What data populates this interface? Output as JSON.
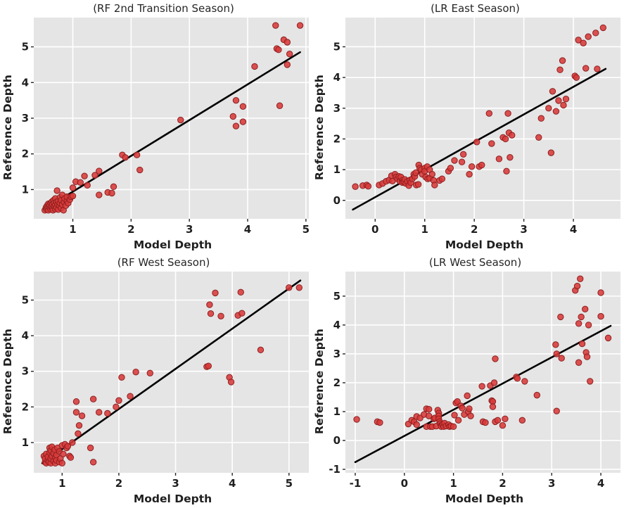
{
  "colors": {
    "plot_bg": "#e5e5e5",
    "grid": "#ffffff",
    "point_fill": "#d83a3a",
    "point_edge": "#8e1f1f",
    "fit_line": "#000000",
    "tick_mark": "#262626",
    "text": "#1f1f1f"
  },
  "chart_data": [
    {
      "type": "scatter",
      "title": "(RF 2nd Transition Season)",
      "xlabel": "Model Depth",
      "ylabel": "Reference Depth",
      "xlim": [
        0.33,
        5.05
      ],
      "ylim": [
        0.18,
        5.82
      ],
      "xticks": [
        1,
        2,
        3,
        4,
        5
      ],
      "yticks": [
        1,
        2,
        3,
        4,
        5
      ],
      "grid": true,
      "legend": "none",
      "fit_line": {
        "x1": 0.5,
        "y1": 0.44,
        "x2": 4.9,
        "y2": 4.85
      },
      "points": [
        [
          0.52,
          0.42
        ],
        [
          0.54,
          0.5
        ],
        [
          0.55,
          0.45
        ],
        [
          0.56,
          0.55
        ],
        [
          0.57,
          0.48
        ],
        [
          0.58,
          0.42
        ],
        [
          0.58,
          0.6
        ],
        [
          0.6,
          0.5
        ],
        [
          0.6,
          0.57
        ],
        [
          0.62,
          0.45
        ],
        [
          0.62,
          0.62
        ],
        [
          0.63,
          0.52
        ],
        [
          0.64,
          0.66
        ],
        [
          0.65,
          0.48
        ],
        [
          0.65,
          0.58
        ],
        [
          0.66,
          0.42
        ],
        [
          0.67,
          0.7
        ],
        [
          0.68,
          0.53
        ],
        [
          0.68,
          0.62
        ],
        [
          0.7,
          0.45
        ],
        [
          0.7,
          0.57
        ],
        [
          0.7,
          0.75
        ],
        [
          0.72,
          0.5
        ],
        [
          0.72,
          0.65
        ],
        [
          0.73,
          0.97
        ],
        [
          0.74,
          0.58
        ],
        [
          0.75,
          0.44
        ],
        [
          0.75,
          0.68
        ],
        [
          0.77,
          0.55
        ],
        [
          0.78,
          0.62
        ],
        [
          0.78,
          0.78
        ],
        [
          0.8,
          0.48
        ],
        [
          0.8,
          0.7
        ],
        [
          0.82,
          0.58
        ],
        [
          0.82,
          0.85
        ],
        [
          0.84,
          0.42
        ],
        [
          0.85,
          0.65
        ],
        [
          0.86,
          0.75
        ],
        [
          0.88,
          0.55
        ],
        [
          0.9,
          0.68
        ],
        [
          0.9,
          0.8
        ],
        [
          0.92,
          0.62
        ],
        [
          0.95,
          0.72
        ],
        [
          0.97,
          0.8
        ],
        [
          1.0,
          0.82
        ],
        [
          1.0,
          1.05
        ],
        [
          1.05,
          1.22
        ],
        [
          1.13,
          1.2
        ],
        [
          1.2,
          1.38
        ],
        [
          1.25,
          1.12
        ],
        [
          1.38,
          1.4
        ],
        [
          1.45,
          1.52
        ],
        [
          1.45,
          0.85
        ],
        [
          1.6,
          0.92
        ],
        [
          1.67,
          0.9
        ],
        [
          1.7,
          1.08
        ],
        [
          1.85,
          1.97
        ],
        [
          1.9,
          1.9
        ],
        [
          2.1,
          1.97
        ],
        [
          2.15,
          1.55
        ],
        [
          2.85,
          2.95
        ],
        [
          3.75,
          3.05
        ],
        [
          3.8,
          3.5
        ],
        [
          3.8,
          2.78
        ],
        [
          3.92,
          2.9
        ],
        [
          3.92,
          3.33
        ],
        [
          4.12,
          4.45
        ],
        [
          4.48,
          5.6
        ],
        [
          4.5,
          4.95
        ],
        [
          4.53,
          4.92
        ],
        [
          4.55,
          3.35
        ],
        [
          4.62,
          5.2
        ],
        [
          4.68,
          5.13
        ],
        [
          4.68,
          4.5
        ],
        [
          4.72,
          4.8
        ],
        [
          4.9,
          5.6
        ]
      ]
    },
    {
      "type": "scatter",
      "title": "(LR East Season)",
      "xlabel": "Model Depth",
      "ylabel": "Reference Depth",
      "xlim": [
        -0.6,
        4.95
      ],
      "ylim": [
        -0.6,
        5.95
      ],
      "xticks": [
        0,
        1,
        2,
        3,
        4
      ],
      "yticks": [
        0,
        1,
        2,
        3,
        4,
        5
      ],
      "grid": true,
      "legend": "none",
      "fit_line": {
        "x1": -0.45,
        "y1": -0.3,
        "x2": 4.65,
        "y2": 4.28
      },
      "points": [
        [
          -0.4,
          0.45
        ],
        [
          -0.25,
          0.48
        ],
        [
          -0.17,
          0.5
        ],
        [
          -0.14,
          0.46
        ],
        [
          0.08,
          0.5
        ],
        [
          0.15,
          0.55
        ],
        [
          0.22,
          0.62
        ],
        [
          0.28,
          0.66
        ],
        [
          0.33,
          0.8
        ],
        [
          0.35,
          0.63
        ],
        [
          0.4,
          0.85
        ],
        [
          0.42,
          0.76
        ],
        [
          0.45,
          0.7
        ],
        [
          0.48,
          0.78
        ],
        [
          0.5,
          0.62
        ],
        [
          0.52,
          0.76
        ],
        [
          0.55,
          0.65
        ],
        [
          0.55,
          0.58
        ],
        [
          0.58,
          0.6
        ],
        [
          0.6,
          0.68
        ],
        [
          0.62,
          0.55
        ],
        [
          0.65,
          0.62
        ],
        [
          0.68,
          0.48
        ],
        [
          0.7,
          0.66
        ],
        [
          0.72,
          0.58
        ],
        [
          0.75,
          0.7
        ],
        [
          0.78,
          0.85
        ],
        [
          0.8,
          0.78
        ],
        [
          0.82,
          0.9
        ],
        [
          0.83,
          0.5
        ],
        [
          0.87,
          0.52
        ],
        [
          0.88,
          1.15
        ],
        [
          0.9,
          1.05
        ],
        [
          0.93,
          1.0
        ],
        [
          0.95,
          0.85
        ],
        [
          1.0,
          1.05
        ],
        [
          1.0,
          0.95
        ],
        [
          1.02,
          0.76
        ],
        [
          1.05,
          1.1
        ],
        [
          1.06,
          0.7
        ],
        [
          1.1,
          1.0
        ],
        [
          1.1,
          0.72
        ],
        [
          1.15,
          0.85
        ],
        [
          1.18,
          0.65
        ],
        [
          1.2,
          0.5
        ],
        [
          1.3,
          0.65
        ],
        [
          1.35,
          0.7
        ],
        [
          1.48,
          0.95
        ],
        [
          1.52,
          1.05
        ],
        [
          1.6,
          1.3
        ],
        [
          1.75,
          1.25
        ],
        [
          1.78,
          1.5
        ],
        [
          1.9,
          0.85
        ],
        [
          1.95,
          1.1
        ],
        [
          2.05,
          1.9
        ],
        [
          2.1,
          1.1
        ],
        [
          2.15,
          1.15
        ],
        [
          2.3,
          2.83
        ],
        [
          2.35,
          1.85
        ],
        [
          2.5,
          1.35
        ],
        [
          2.58,
          2.05
        ],
        [
          2.63,
          2.0
        ],
        [
          2.65,
          0.95
        ],
        [
          2.68,
          2.83
        ],
        [
          2.7,
          2.2
        ],
        [
          2.72,
          1.4
        ],
        [
          2.76,
          2.12
        ],
        [
          3.3,
          2.05
        ],
        [
          3.35,
          2.67
        ],
        [
          3.5,
          3.0
        ],
        [
          3.55,
          1.55
        ],
        [
          3.58,
          3.55
        ],
        [
          3.65,
          2.9
        ],
        [
          3.7,
          3.25
        ],
        [
          3.73,
          4.25
        ],
        [
          3.78,
          4.55
        ],
        [
          3.8,
          3.1
        ],
        [
          3.85,
          3.3
        ],
        [
          4.03,
          4.05
        ],
        [
          4.06,
          4.0
        ],
        [
          4.1,
          5.22
        ],
        [
          4.2,
          5.12
        ],
        [
          4.25,
          4.3
        ],
        [
          4.3,
          5.33
        ],
        [
          4.45,
          5.45
        ],
        [
          4.48,
          4.28
        ],
        [
          4.6,
          5.62
        ]
      ]
    },
    {
      "type": "scatter",
      "title": "(RF West Season)",
      "xlabel": "Model Depth",
      "ylabel": "Reference Depth",
      "xlim": [
        0.5,
        5.35
      ],
      "ylim": [
        0.15,
        5.8
      ],
      "xticks": [
        1,
        2,
        3,
        4,
        5
      ],
      "yticks": [
        1,
        2,
        3,
        4,
        5
      ],
      "grid": true,
      "legend": "none",
      "fit_line": {
        "x1": 0.65,
        "y1": 0.42,
        "x2": 5.2,
        "y2": 5.55
      },
      "points": [
        [
          0.68,
          0.62
        ],
        [
          0.7,
          0.45
        ],
        [
          0.7,
          0.55
        ],
        [
          0.72,
          0.42
        ],
        [
          0.72,
          0.68
        ],
        [
          0.75,
          0.5
        ],
        [
          0.75,
          0.6
        ],
        [
          0.77,
          0.45
        ],
        [
          0.78,
          0.72
        ],
        [
          0.78,
          0.85
        ],
        [
          0.8,
          0.42
        ],
        [
          0.8,
          0.55
        ],
        [
          0.8,
          0.78
        ],
        [
          0.82,
          0.62
        ],
        [
          0.82,
          0.88
        ],
        [
          0.85,
          0.48
        ],
        [
          0.85,
          0.7
        ],
        [
          0.87,
          0.8
        ],
        [
          0.88,
          0.42
        ],
        [
          0.88,
          0.58
        ],
        [
          0.9,
          0.5
        ],
        [
          0.9,
          0.65
        ],
        [
          0.92,
          0.85
        ],
        [
          0.95,
          0.45
        ],
        [
          0.95,
          0.75
        ],
        [
          0.97,
          0.55
        ],
        [
          1.0,
          0.42
        ],
        [
          1.0,
          0.92
        ],
        [
          1.02,
          0.68
        ],
        [
          1.05,
          0.95
        ],
        [
          1.08,
          0.85
        ],
        [
          1.1,
          0.9
        ],
        [
          1.13,
          0.62
        ],
        [
          1.15,
          0.58
        ],
        [
          1.18,
          1.0
        ],
        [
          1.25,
          2.15
        ],
        [
          1.25,
          1.85
        ],
        [
          1.28,
          1.25
        ],
        [
          1.3,
          1.48
        ],
        [
          1.35,
          1.75
        ],
        [
          1.5,
          0.85
        ],
        [
          1.55,
          2.22
        ],
        [
          1.55,
          0.45
        ],
        [
          1.65,
          1.85
        ],
        [
          1.8,
          1.82
        ],
        [
          1.95,
          2.0
        ],
        [
          2.0,
          2.18
        ],
        [
          2.05,
          2.83
        ],
        [
          2.2,
          2.3
        ],
        [
          2.3,
          2.98
        ],
        [
          2.55,
          2.95
        ],
        [
          3.55,
          3.13
        ],
        [
          3.58,
          3.15
        ],
        [
          3.6,
          4.87
        ],
        [
          3.62,
          4.62
        ],
        [
          3.7,
          5.2
        ],
        [
          3.8,
          4.55
        ],
        [
          3.95,
          2.83
        ],
        [
          3.98,
          2.7
        ],
        [
          4.1,
          4.57
        ],
        [
          4.15,
          5.22
        ],
        [
          4.17,
          4.63
        ],
        [
          4.5,
          3.6
        ],
        [
          5.0,
          5.35
        ],
        [
          5.18,
          5.35
        ]
      ]
    },
    {
      "type": "scatter",
      "title": "(LR West Season)",
      "xlabel": "Model Depth",
      "ylabel": "Reference Depth",
      "xlim": [
        -1.2,
        4.4
      ],
      "ylim": [
        -1.12,
        5.85
      ],
      "xticks": [
        -1,
        0,
        1,
        2,
        3,
        4
      ],
      "yticks": [
        -1,
        0,
        1,
        2,
        3,
        4,
        5
      ],
      "grid": true,
      "legend": "none",
      "fit_line": {
        "x1": -1.0,
        "y1": -0.75,
        "x2": 4.2,
        "y2": 3.97
      },
      "points": [
        [
          -0.97,
          0.73
        ],
        [
          -0.55,
          0.65
        ],
        [
          -0.5,
          0.62
        ],
        [
          0.08,
          0.57
        ],
        [
          0.15,
          0.7
        ],
        [
          0.2,
          0.65
        ],
        [
          0.25,
          0.83
        ],
        [
          0.25,
          0.55
        ],
        [
          0.32,
          0.78
        ],
        [
          0.4,
          0.9
        ],
        [
          0.45,
          1.1
        ],
        [
          0.45,
          0.48
        ],
        [
          0.5,
          1.08
        ],
        [
          0.5,
          0.85
        ],
        [
          0.53,
          0.48
        ],
        [
          0.57,
          0.48
        ],
        [
          0.6,
          0.75
        ],
        [
          0.62,
          0.78
        ],
        [
          0.65,
          0.5
        ],
        [
          0.68,
          1.05
        ],
        [
          0.7,
          0.95
        ],
        [
          0.7,
          0.85
        ],
        [
          0.7,
          0.75
        ],
        [
          0.72,
          0.65
        ],
        [
          0.73,
          0.58
        ],
        [
          0.75,
          0.52
        ],
        [
          0.75,
          0.48
        ],
        [
          0.78,
          0.55
        ],
        [
          0.8,
          0.48
        ],
        [
          0.82,
          0.6
        ],
        [
          0.85,
          0.5
        ],
        [
          0.9,
          0.55
        ],
        [
          0.92,
          0.48
        ],
        [
          0.95,
          0.5
        ],
        [
          1.0,
          0.48
        ],
        [
          1.02,
          0.88
        ],
        [
          1.05,
          1.3
        ],
        [
          1.08,
          1.35
        ],
        [
          1.1,
          0.7
        ],
        [
          1.15,
          1.2
        ],
        [
          1.18,
          1.12
        ],
        [
          1.22,
          0.9
        ],
        [
          1.28,
          1.55
        ],
        [
          1.3,
          1.0
        ],
        [
          1.32,
          1.1
        ],
        [
          1.35,
          0.85
        ],
        [
          1.58,
          1.88
        ],
        [
          1.6,
          0.65
        ],
        [
          1.65,
          0.62
        ],
        [
          1.75,
          1.9
        ],
        [
          1.78,
          1.38
        ],
        [
          1.8,
          1.35
        ],
        [
          1.8,
          1.17
        ],
        [
          1.83,
          2.0
        ],
        [
          1.85,
          2.83
        ],
        [
          1.85,
          0.65
        ],
        [
          1.9,
          0.7
        ],
        [
          2.0,
          0.52
        ],
        [
          2.05,
          0.75
        ],
        [
          2.28,
          2.2
        ],
        [
          2.3,
          2.15
        ],
        [
          2.4,
          0.7
        ],
        [
          2.45,
          2.05
        ],
        [
          2.7,
          1.57
        ],
        [
          3.08,
          3.32
        ],
        [
          3.1,
          3.0
        ],
        [
          3.1,
          1.02
        ],
        [
          3.18,
          4.28
        ],
        [
          3.2,
          2.85
        ],
        [
          3.48,
          5.2
        ],
        [
          3.52,
          5.35
        ],
        [
          3.55,
          4.05
        ],
        [
          3.55,
          2.7
        ],
        [
          3.58,
          5.6
        ],
        [
          3.6,
          4.28
        ],
        [
          3.62,
          3.35
        ],
        [
          3.68,
          4.55
        ],
        [
          3.7,
          3.05
        ],
        [
          3.72,
          2.9
        ],
        [
          3.75,
          4.0
        ],
        [
          3.78,
          2.05
        ],
        [
          4.0,
          5.12
        ],
        [
          4.0,
          4.3
        ],
        [
          4.15,
          3.55
        ]
      ]
    }
  ]
}
